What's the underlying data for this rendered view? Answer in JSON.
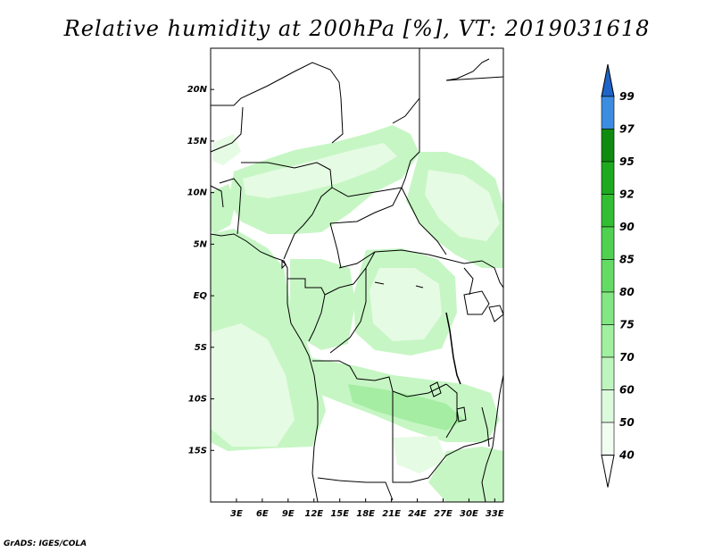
{
  "title": "Relative humidity at 200hPa [%], VT: 2019031618",
  "credit": "GrADS: IGES/COLA",
  "map": {
    "lon_range": [
      0,
      34
    ],
    "lat_range": [
      -20,
      24
    ],
    "lon_ticks": [
      "3E",
      "6E",
      "9E",
      "12E",
      "15E",
      "18E",
      "21E",
      "24E",
      "27E",
      "30E",
      "33E"
    ],
    "lat_ticks": [
      "20N",
      "15N",
      "10N",
      "5N",
      "EQ",
      "5S",
      "10S",
      "15S"
    ]
  },
  "colorbar": {
    "levels": [
      "99",
      "97",
      "95",
      "92",
      "90",
      "85",
      "80",
      "75",
      "70",
      "60",
      "50",
      "40"
    ],
    "colors": [
      "#1e64c8",
      "#3c8ce1",
      "#0f8c0f",
      "#1eaa1e",
      "#32be32",
      "#50d250",
      "#64dc64",
      "#82e682",
      "#a0f0a0",
      "#bef5be",
      "#dcfadc",
      "#f2fdf2"
    ]
  },
  "colors": {
    "humid_light": "#e6fbe3",
    "humid_mid": "#c6f6c4",
    "humid_dark": "#a5eda3",
    "border": "#000000"
  }
}
